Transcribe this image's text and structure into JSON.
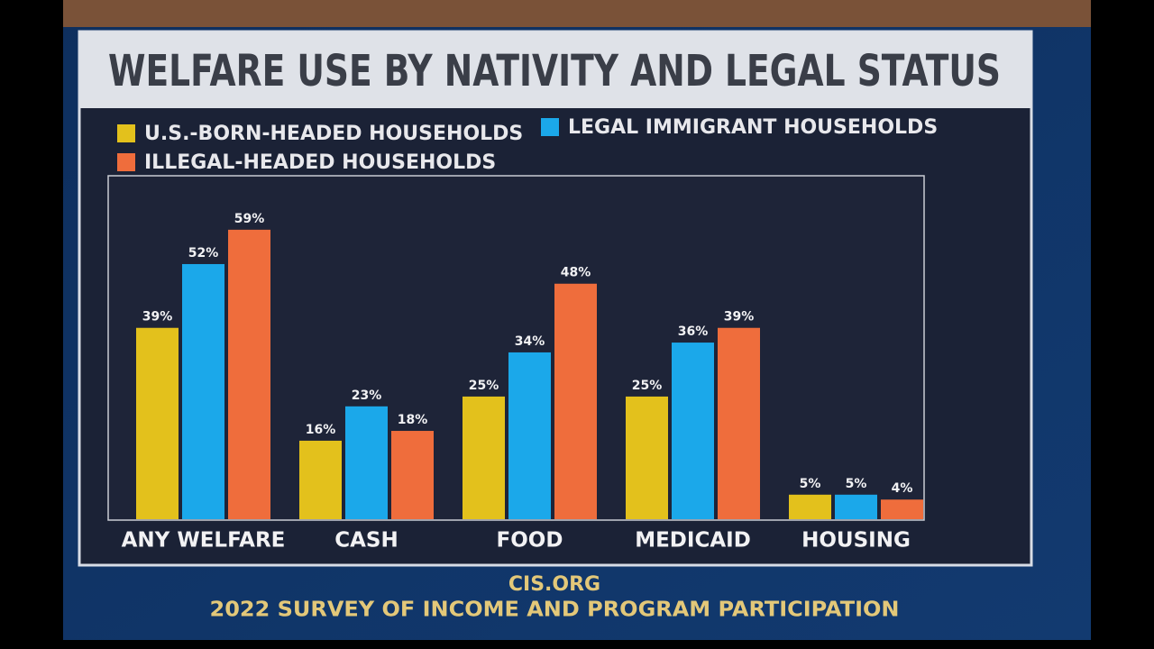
{
  "chart_data": {
    "type": "bar",
    "title": "WELFARE USE BY NATIVITY AND LEGAL STATUS",
    "categories": [
      "ANY WELFARE",
      "CASH",
      "FOOD",
      "MEDICAID",
      "HOUSING"
    ],
    "series": [
      {
        "name": "U.S.-BORN-HEADED HOUSEHOLDS",
        "color": "#e3c11c",
        "values": [
          39,
          16,
          25,
          25,
          5
        ],
        "value_labels": [
          "39%",
          "16%",
          "25%",
          "25%",
          "5%"
        ]
      },
      {
        "name": "LEGAL IMMIGRANT HOUSEHOLDS",
        "color": "#1ba8ea",
        "values": [
          52,
          23,
          34,
          36,
          5
        ],
        "value_labels": [
          "52%",
          "23%",
          "34%",
          "36%",
          "5%"
        ]
      },
      {
        "name": "ILLEGAL-HEADED HOUSEHOLDS",
        "color": "#ef6d3c",
        "values": [
          59,
          18,
          48,
          39,
          4
        ],
        "value_labels": [
          "59%",
          "18%",
          "48%",
          "39%",
          "4%"
        ]
      }
    ],
    "ylim": [
      0,
      70
    ],
    "source": "CIS.ORG",
    "note": "2022 SURVEY OF INCOME AND PROGRAM PARTICIPATION"
  }
}
